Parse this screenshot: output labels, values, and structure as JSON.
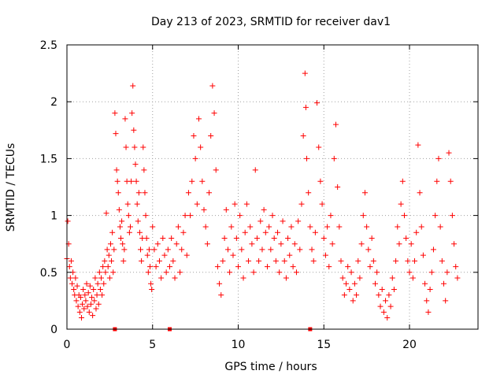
{
  "chart_data": {
    "type": "scatter",
    "title": "Day 213 of 2023, SRMTID for receiver dav1",
    "xlabel": "GPS time / hours",
    "ylabel": "SRMTID / TECUs",
    "xlim": [
      0,
      24
    ],
    "ylim": [
      0,
      2.5
    ],
    "xticks": [
      0,
      5,
      10,
      15,
      20
    ],
    "yticks": [
      0,
      0.5,
      1,
      1.5,
      2,
      2.5
    ],
    "x_tick_labels": [
      "0",
      "5",
      "10",
      "15",
      "20"
    ],
    "y_tick_labels": [
      "0",
      "0.5",
      "1",
      "1.5",
      "2",
      "2.5"
    ],
    "grid": true,
    "marker": "plus",
    "color": "#ff0000",
    "series": [
      {
        "name": "SRMTID",
        "points": [
          [
            0.0,
            0.62
          ],
          [
            0.05,
            0.95
          ],
          [
            0.1,
            0.75
          ],
          [
            0.15,
            0.55
          ],
          [
            0.2,
            0.45
          ],
          [
            0.25,
            0.6
          ],
          [
            0.3,
            0.4
          ],
          [
            0.35,
            0.5
          ],
          [
            0.4,
            0.35
          ],
          [
            0.45,
            0.3
          ],
          [
            0.5,
            0.45
          ],
          [
            0.55,
            0.25
          ],
          [
            0.6,
            0.38
          ],
          [
            0.65,
            0.2
          ],
          [
            0.7,
            0.3
          ],
          [
            0.75,
            0.15
          ],
          [
            0.8,
            0.28
          ],
          [
            0.85,
            0.1
          ],
          [
            0.9,
            0.22
          ],
          [
            0.95,
            0.35
          ],
          [
            1.0,
            0.18
          ],
          [
            1.05,
            0.3
          ],
          [
            1.1,
            0.25
          ],
          [
            1.15,
            0.4
          ],
          [
            1.2,
            0.2
          ],
          [
            1.25,
            0.32
          ],
          [
            1.3,
            0.15
          ],
          [
            1.35,
            0.38
          ],
          [
            1.4,
            0.22
          ],
          [
            1.45,
            0.28
          ],
          [
            1.5,
            0.12
          ],
          [
            1.55,
            0.35
          ],
          [
            1.6,
            0.25
          ],
          [
            1.65,
            0.45
          ],
          [
            1.7,
            0.18
          ],
          [
            1.75,
            0.3
          ],
          [
            1.8,
            0.4
          ],
          [
            1.85,
            0.22
          ],
          [
            1.9,
            0.5
          ],
          [
            1.95,
            0.35
          ],
          [
            2.0,
            0.45
          ],
          [
            2.05,
            0.3
          ],
          [
            2.1,
            0.55
          ],
          [
            2.15,
            0.4
          ],
          [
            2.2,
            0.6
          ],
          [
            2.25,
            0.5
          ],
          [
            2.3,
            1.02
          ],
          [
            2.35,
            0.7
          ],
          [
            2.4,
            0.55
          ],
          [
            2.45,
            0.65
          ],
          [
            2.5,
            0.45
          ],
          [
            2.55,
            0.75
          ],
          [
            2.6,
            0.6
          ],
          [
            2.65,
            0.85
          ],
          [
            2.7,
            0.5
          ],
          [
            2.75,
            0.7
          ],
          [
            2.8,
            1.9
          ],
          [
            2.85,
            1.72
          ],
          [
            2.9,
            1.4
          ],
          [
            2.95,
            1.3
          ],
          [
            3.0,
            1.2
          ],
          [
            3.05,
            1.05
          ],
          [
            3.1,
            0.9
          ],
          [
            3.15,
            0.8
          ],
          [
            3.2,
            0.95
          ],
          [
            3.25,
            0.75
          ],
          [
            3.3,
            0.6
          ],
          [
            3.35,
            0.7
          ],
          [
            3.4,
            1.85
          ],
          [
            3.45,
            1.6
          ],
          [
            3.5,
            1.3
          ],
          [
            3.55,
            1.1
          ],
          [
            3.6,
            1.0
          ],
          [
            3.65,
            0.85
          ],
          [
            3.7,
            0.9
          ],
          [
            3.75,
            1.3
          ],
          [
            3.8,
            1.9
          ],
          [
            3.85,
            2.14
          ],
          [
            3.9,
            1.75
          ],
          [
            3.95,
            1.6
          ],
          [
            4.0,
            1.45
          ],
          [
            4.05,
            1.3
          ],
          [
            4.1,
            1.1
          ],
          [
            4.15,
            0.95
          ],
          [
            4.2,
            1.2
          ],
          [
            4.25,
            0.85
          ],
          [
            4.3,
            0.7
          ],
          [
            4.35,
            0.6
          ],
          [
            4.4,
            0.8
          ],
          [
            4.45,
            1.6
          ],
          [
            4.5,
            1.4
          ],
          [
            4.55,
            1.2
          ],
          [
            4.6,
            1.0
          ],
          [
            4.65,
            0.8
          ],
          [
            4.7,
            0.65
          ],
          [
            4.75,
            0.5
          ],
          [
            4.8,
            0.7
          ],
          [
            4.85,
            0.55
          ],
          [
            4.9,
            0.4
          ],
          [
            4.95,
            0.35
          ],
          [
            5.0,
            0.9
          ],
          [
            5.1,
            0.7
          ],
          [
            5.2,
            0.55
          ],
          [
            5.3,
            0.75
          ],
          [
            5.4,
            0.6
          ],
          [
            5.5,
            0.45
          ],
          [
            5.6,
            0.8
          ],
          [
            5.7,
            0.65
          ],
          [
            5.8,
            0.5
          ],
          [
            5.9,
            0.7
          ],
          [
            6.0,
            0.55
          ],
          [
            6.1,
            0.8
          ],
          [
            6.2,
            0.6
          ],
          [
            6.3,
            0.45
          ],
          [
            6.4,
            0.75
          ],
          [
            6.5,
            0.9
          ],
          [
            6.6,
            0.5
          ],
          [
            6.7,
            0.7
          ],
          [
            6.8,
            0.85
          ],
          [
            6.9,
            1.0
          ],
          [
            7.0,
            0.65
          ],
          [
            7.1,
            1.2
          ],
          [
            7.2,
            1.0
          ],
          [
            7.3,
            1.3
          ],
          [
            7.4,
            1.7
          ],
          [
            7.5,
            1.5
          ],
          [
            7.6,
            1.1
          ],
          [
            7.7,
            1.85
          ],
          [
            7.8,
            1.6
          ],
          [
            7.9,
            1.3
          ],
          [
            8.0,
            1.05
          ],
          [
            8.1,
            0.9
          ],
          [
            8.2,
            0.75
          ],
          [
            8.3,
            1.2
          ],
          [
            8.4,
            1.7
          ],
          [
            8.5,
            2.14
          ],
          [
            8.6,
            1.9
          ],
          [
            8.7,
            1.4
          ],
          [
            8.8,
            0.55
          ],
          [
            8.9,
            0.4
          ],
          [
            9.0,
            0.3
          ],
          [
            9.1,
            0.6
          ],
          [
            9.2,
            0.8
          ],
          [
            9.3,
            1.05
          ],
          [
            9.4,
            0.7
          ],
          [
            9.5,
            0.5
          ],
          [
            9.6,
            0.9
          ],
          [
            9.7,
            0.65
          ],
          [
            9.8,
            1.1
          ],
          [
            9.9,
            0.8
          ],
          [
            10.0,
            0.55
          ],
          [
            10.1,
            1.0
          ],
          [
            10.2,
            0.7
          ],
          [
            10.3,
            0.45
          ],
          [
            10.4,
            0.85
          ],
          [
            10.5,
            1.1
          ],
          [
            10.6,
            0.6
          ],
          [
            10.7,
            0.9
          ],
          [
            10.8,
            0.75
          ],
          [
            10.9,
            0.5
          ],
          [
            11.0,
            1.4
          ],
          [
            11.1,
            0.8
          ],
          [
            11.2,
            0.6
          ],
          [
            11.3,
            0.95
          ],
          [
            11.4,
            0.7
          ],
          [
            11.5,
            1.05
          ],
          [
            11.6,
            0.85
          ],
          [
            11.7,
            0.55
          ],
          [
            11.8,
            0.9
          ],
          [
            11.9,
            0.7
          ],
          [
            12.0,
            1.0
          ],
          [
            12.1,
            0.8
          ],
          [
            12.2,
            0.6
          ],
          [
            12.3,
            0.85
          ],
          [
            12.4,
            0.5
          ],
          [
            12.5,
            0.75
          ],
          [
            12.6,
            0.95
          ],
          [
            12.7,
            0.6
          ],
          [
            12.8,
            0.45
          ],
          [
            12.9,
            0.8
          ],
          [
            13.0,
            0.65
          ],
          [
            13.1,
            0.9
          ],
          [
            13.2,
            0.55
          ],
          [
            13.3,
            0.75
          ],
          [
            13.4,
            0.5
          ],
          [
            13.5,
            0.95
          ],
          [
            13.6,
            0.7
          ],
          [
            13.7,
            1.1
          ],
          [
            13.8,
            1.7
          ],
          [
            13.9,
            2.25
          ],
          [
            13.95,
            1.95
          ],
          [
            14.0,
            1.5
          ],
          [
            14.1,
            1.2
          ],
          [
            14.2,
            0.9
          ],
          [
            14.3,
            0.7
          ],
          [
            14.4,
            0.6
          ],
          [
            14.5,
            0.85
          ],
          [
            14.6,
            1.99
          ],
          [
            14.7,
            1.6
          ],
          [
            14.8,
            1.3
          ],
          [
            14.9,
            1.1
          ],
          [
            15.0,
            0.8
          ],
          [
            15.1,
            0.65
          ],
          [
            15.2,
            0.9
          ],
          [
            15.3,
            0.55
          ],
          [
            15.4,
            1.0
          ],
          [
            15.5,
            0.75
          ],
          [
            15.6,
            1.5
          ],
          [
            15.7,
            1.8
          ],
          [
            15.8,
            1.25
          ],
          [
            15.9,
            0.9
          ],
          [
            16.0,
            0.6
          ],
          [
            16.1,
            0.45
          ],
          [
            16.2,
            0.3
          ],
          [
            16.3,
            0.4
          ],
          [
            16.4,
            0.55
          ],
          [
            16.5,
            0.35
          ],
          [
            16.6,
            0.5
          ],
          [
            16.7,
            0.25
          ],
          [
            16.8,
            0.4
          ],
          [
            16.9,
            0.3
          ],
          [
            17.0,
            0.6
          ],
          [
            17.1,
            0.45
          ],
          [
            17.2,
            0.75
          ],
          [
            17.3,
            1.0
          ],
          [
            17.4,
            1.2
          ],
          [
            17.5,
            0.9
          ],
          [
            17.6,
            0.7
          ],
          [
            17.7,
            0.55
          ],
          [
            17.8,
            0.8
          ],
          [
            17.9,
            0.6
          ],
          [
            18.0,
            0.4
          ],
          [
            18.1,
            0.5
          ],
          [
            18.2,
            0.3
          ],
          [
            18.3,
            0.2
          ],
          [
            18.4,
            0.35
          ],
          [
            18.5,
            0.15
          ],
          [
            18.6,
            0.25
          ],
          [
            18.7,
            0.1
          ],
          [
            18.8,
            0.3
          ],
          [
            18.9,
            0.2
          ],
          [
            19.0,
            0.45
          ],
          [
            19.1,
            0.35
          ],
          [
            19.2,
            0.6
          ],
          [
            19.3,
            0.9
          ],
          [
            19.4,
            0.75
          ],
          [
            19.5,
            1.1
          ],
          [
            19.6,
            1.3
          ],
          [
            19.7,
            1.0
          ],
          [
            19.8,
            0.8
          ],
          [
            19.9,
            0.6
          ],
          [
            20.0,
            0.5
          ],
          [
            20.1,
            0.75
          ],
          [
            20.2,
            0.45
          ],
          [
            20.3,
            0.6
          ],
          [
            20.4,
            0.85
          ],
          [
            20.5,
            1.62
          ],
          [
            20.6,
            1.2
          ],
          [
            20.7,
            0.9
          ],
          [
            20.8,
            0.65
          ],
          [
            20.9,
            0.4
          ],
          [
            21.0,
            0.25
          ],
          [
            21.1,
            0.15
          ],
          [
            21.2,
            0.35
          ],
          [
            21.3,
            0.5
          ],
          [
            21.4,
            0.7
          ],
          [
            21.5,
            1.0
          ],
          [
            21.6,
            1.3
          ],
          [
            21.7,
            1.5
          ],
          [
            21.8,
            0.9
          ],
          [
            21.9,
            0.6
          ],
          [
            22.0,
            0.4
          ],
          [
            22.1,
            0.25
          ],
          [
            22.2,
            0.5
          ],
          [
            22.3,
            1.55
          ],
          [
            22.4,
            1.3
          ],
          [
            22.5,
            1.0
          ],
          [
            22.6,
            0.75
          ],
          [
            22.7,
            0.55
          ],
          [
            22.8,
            0.45
          ]
        ]
      }
    ],
    "axis_markers_x": [
      2.8,
      6.0,
      14.2
    ]
  }
}
